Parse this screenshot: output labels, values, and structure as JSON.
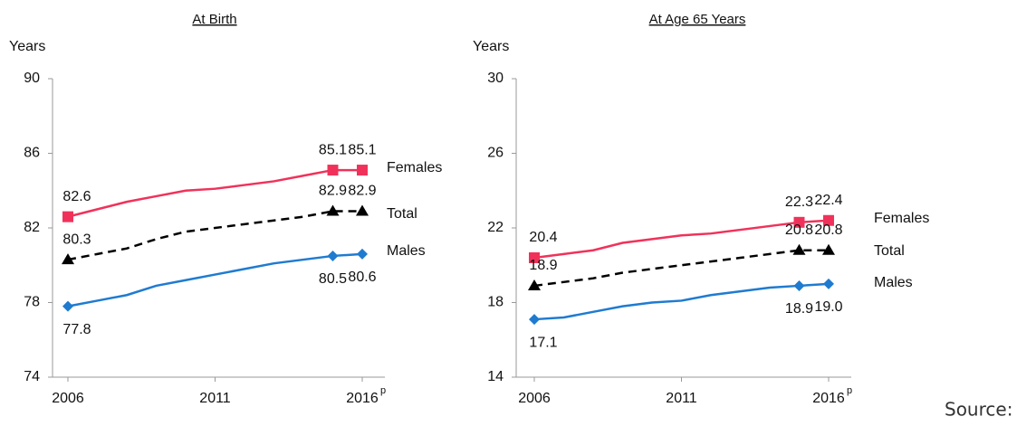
{
  "chart_data": [
    {
      "type": "line",
      "title": "At Birth",
      "y_label": "Years",
      "x": [
        2006,
        2007,
        2008,
        2009,
        2010,
        2011,
        2012,
        2013,
        2014,
        2015,
        2016
      ],
      "xlim": [
        2006,
        2016
      ],
      "xticks": [
        2006,
        2011,
        2016
      ],
      "last_tick_note": "p",
      "ylim": [
        74,
        90
      ],
      "yticks": [
        74,
        78,
        82,
        86,
        90
      ],
      "series": [
        {
          "name": "Females",
          "color": "#f0325a",
          "marker": "square",
          "dash": false,
          "values": [
            82.6,
            83.0,
            83.4,
            83.7,
            84.0,
            84.1,
            84.3,
            84.5,
            84.8,
            85.1,
            85.1
          ],
          "value_labels": [
            "82.6",
            null,
            null,
            null,
            null,
            null,
            null,
            null,
            null,
            "85.1",
            "85.1"
          ]
        },
        {
          "name": "Total",
          "color": "#000000",
          "marker": "triangle",
          "dash": true,
          "values": [
            80.3,
            80.6,
            80.9,
            81.4,
            81.8,
            82.0,
            82.2,
            82.4,
            82.6,
            82.9,
            82.9
          ],
          "value_labels": [
            "80.3",
            null,
            null,
            null,
            null,
            null,
            null,
            null,
            null,
            "82.9",
            "82.9"
          ]
        },
        {
          "name": "Males",
          "color": "#1f7bd0",
          "marker": "diamond",
          "dash": false,
          "values": [
            77.8,
            78.1,
            78.4,
            78.9,
            79.2,
            79.5,
            79.8,
            80.1,
            80.3,
            80.5,
            80.6
          ],
          "value_labels": [
            "77.8",
            null,
            null,
            null,
            null,
            null,
            null,
            null,
            null,
            "80.5",
            "80.6"
          ]
        }
      ]
    },
    {
      "type": "line",
      "title": "At Age 65 Years",
      "y_label": "Years",
      "x": [
        2006,
        2007,
        2008,
        2009,
        2010,
        2011,
        2012,
        2013,
        2014,
        2015,
        2016
      ],
      "xlim": [
        2006,
        2016
      ],
      "xticks": [
        2006,
        2011,
        2016
      ],
      "last_tick_note": "p",
      "ylim": [
        14,
        30
      ],
      "yticks": [
        14,
        18,
        22,
        26,
        30
      ],
      "series": [
        {
          "name": "Females",
          "color": "#f0325a",
          "marker": "square",
          "dash": false,
          "values": [
            20.4,
            20.6,
            20.8,
            21.2,
            21.4,
            21.6,
            21.7,
            21.9,
            22.1,
            22.3,
            22.4
          ],
          "value_labels": [
            "20.4",
            null,
            null,
            null,
            null,
            null,
            null,
            null,
            null,
            "22.3",
            "22.4"
          ]
        },
        {
          "name": "Total",
          "color": "#000000",
          "marker": "triangle",
          "dash": true,
          "values": [
            18.9,
            19.1,
            19.3,
            19.6,
            19.8,
            20.0,
            20.2,
            20.4,
            20.6,
            20.8,
            20.8
          ],
          "value_labels": [
            "18.9",
            null,
            null,
            null,
            null,
            null,
            null,
            null,
            null,
            "20.8",
            "20.8"
          ]
        },
        {
          "name": "Males",
          "color": "#1f7bd0",
          "marker": "diamond",
          "dash": false,
          "values": [
            17.1,
            17.2,
            17.5,
            17.8,
            18.0,
            18.1,
            18.4,
            18.6,
            18.8,
            18.9,
            19.0
          ],
          "value_labels": [
            "17.1",
            null,
            null,
            null,
            null,
            null,
            null,
            null,
            null,
            "18.9",
            "19.0"
          ]
        }
      ]
    }
  ],
  "source_text": "Source:"
}
